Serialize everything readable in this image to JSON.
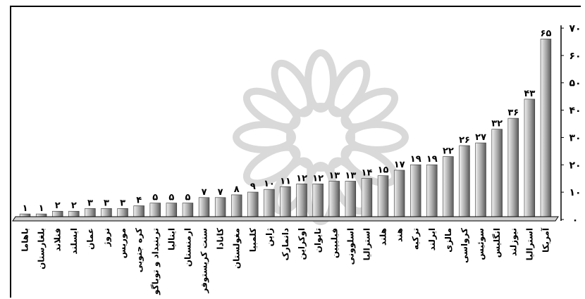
{
  "chart_data": {
    "type": "bar",
    "categories": [
      "باهاما",
      "بلغارستان",
      "فنلاند",
      "ایسلند",
      "عمان",
      "نروژ",
      "موریس",
      "کره جنوبی",
      "ترینیداد و توباگو",
      "ایتالیا",
      "ارمنستان",
      "سنت کریستوفر",
      "کانادا",
      "مغولستان",
      "کلمبیا",
      "ژاپن",
      "دانمارک",
      "اوکراین",
      "تایوان",
      "فیلیپین",
      "اسلوونی",
      "استرالیا",
      "هلند",
      "هند",
      "ترکیه",
      "ایرلند",
      "مالزی",
      "کرواسی",
      "سوئیس",
      "انگلیس",
      "نیوزلند",
      "استرالیا",
      "آمریکا"
    ],
    "values": [
      1,
      1,
      2,
      2,
      3,
      3,
      3,
      4,
      5,
      5,
      5,
      7,
      7,
      8,
      9,
      10,
      11,
      12,
      12,
      13,
      13,
      14,
      15,
      17,
      19,
      19,
      22,
      26,
      27,
      32,
      36,
      43,
      65
    ],
    "value_labels": [
      "۱",
      "۱",
      "۲",
      "۲",
      "۳",
      "۳",
      "۳",
      "۴",
      "۵",
      "۵",
      "۵",
      "۷",
      "۷",
      "۸",
      "۹",
      "۱۰",
      "۱۱",
      "۱۲",
      "۱۲",
      "۱۳",
      "۱۳",
      "۱۴",
      "۱۵",
      "۱۷",
      "۱۹",
      "۱۹",
      "۲۲",
      "۲۶",
      "۲۷",
      "۳۲",
      "۳۶",
      "۴۳",
      "۶۵"
    ],
    "yticks": [
      0,
      10,
      20,
      30,
      40,
      50,
      60,
      70
    ],
    "ytick_labels": [
      "۰",
      "۱۰",
      "۲۰",
      "۳۰",
      "۴۰",
      "۵۰",
      "۶۰",
      "۷۰"
    ],
    "ylim": [
      0,
      70
    ],
    "title": "",
    "xlabel": "",
    "ylabel": "",
    "grid": false,
    "colors": {
      "bar_light": "#f2f2f2",
      "bar_mid": "#a6a6a6",
      "bar_dark": "#5a5a5a",
      "axis": "#000000",
      "watermark": "#d9d9d9"
    }
  }
}
